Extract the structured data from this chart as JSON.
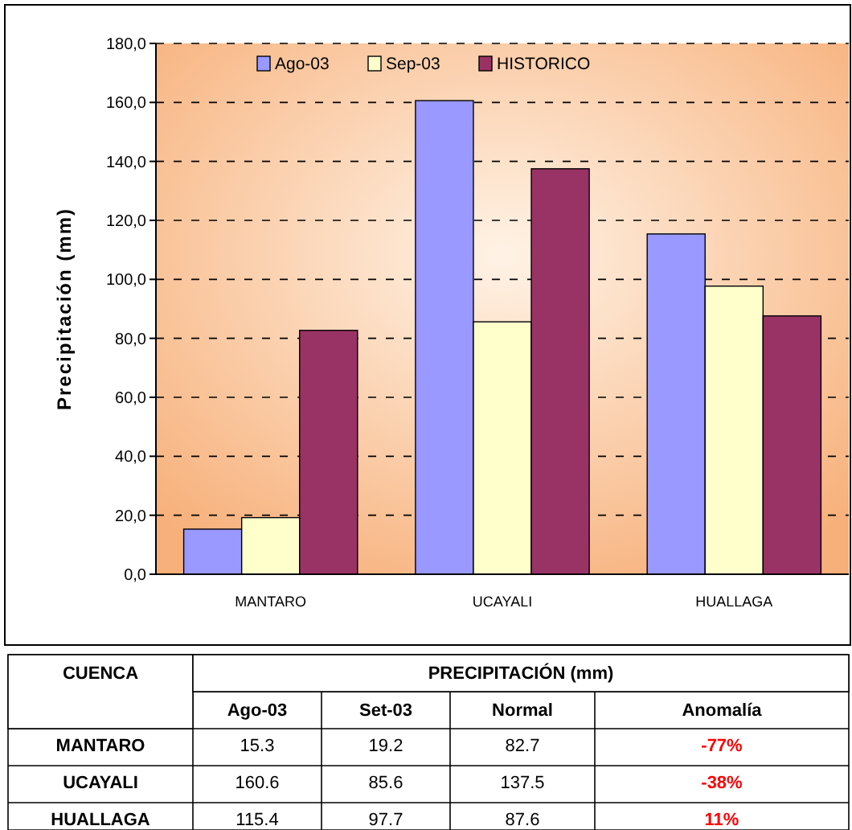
{
  "chart_data": {
    "type": "bar",
    "ylabel": "Precipitación (mm)",
    "categories": [
      "MANTARO",
      "UCAYALI",
      "HUALLAGA"
    ],
    "series": [
      {
        "name": "Ago-03",
        "color": "#9999ff",
        "values": [
          15.3,
          160.6,
          115.4
        ]
      },
      {
        "name": "Sep-03",
        "color": "#ffffcc",
        "values": [
          19.2,
          85.6,
          97.7
        ]
      },
      {
        "name": "HISTORICO",
        "color": "#993366",
        "values": [
          82.7,
          137.5,
          87.6
        ]
      }
    ],
    "ylim": [
      0,
      180
    ],
    "yticks": [
      {
        "value": 0,
        "label": "0,0"
      },
      {
        "value": 20,
        "label": "20,0"
      },
      {
        "value": 40,
        "label": "40,0"
      },
      {
        "value": 60,
        "label": "60,0"
      },
      {
        "value": 80,
        "label": "80,0"
      },
      {
        "value": 100,
        "label": "100,0"
      },
      {
        "value": 120,
        "label": "120,0"
      },
      {
        "value": 140,
        "label": "140,0"
      },
      {
        "value": 160,
        "label": "160,0"
      },
      {
        "value": 180,
        "label": "180,0"
      }
    ],
    "grid": "y",
    "legend": "top",
    "annotations": [
      "CUENCA",
      "PRECIPITACIÓN (mm)",
      "Ago-03",
      "Set-03",
      "Normal",
      "Anomalía",
      "-77%",
      "-38%",
      "11%",
      "15.3",
      "19.2",
      "82.7",
      "160.6",
      "85.6",
      "137.5",
      "115.4",
      "97.7",
      "87.6"
    ]
  }
}
